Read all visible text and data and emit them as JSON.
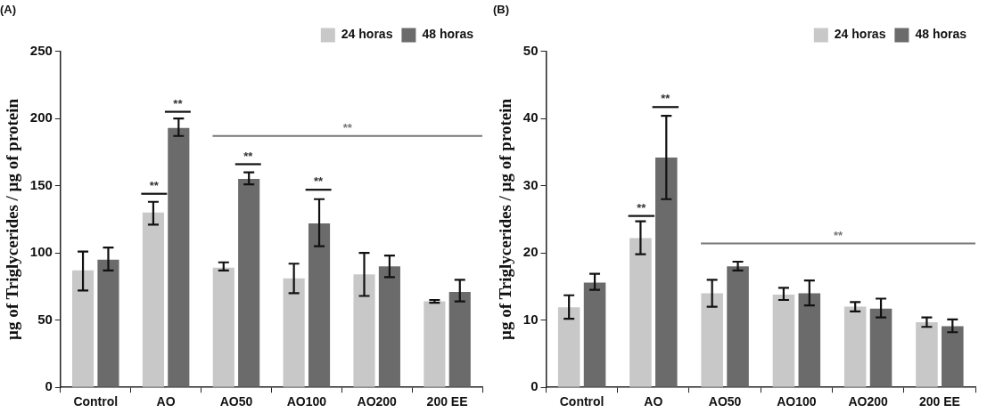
{
  "chart_data": [
    {
      "type": "bar",
      "title": "(A)",
      "ylabel": "µg of Triglycerides / µg of protein",
      "categories": [
        "Control",
        "AO",
        "AO50",
        "AO100",
        "AO200",
        "200 EE"
      ],
      "series": [
        {
          "name": "24 horas",
          "color": "#c8c8c8",
          "values": [
            87,
            130,
            89,
            81,
            84,
            64
          ],
          "errors": [
            [
              72,
              101
            ],
            [
              121,
              138
            ],
            [
              87,
              93
            ],
            [
              70,
              92
            ],
            [
              68,
              100
            ],
            [
              63,
              65
            ]
          ]
        },
        {
          "name": "48 horas",
          "color": "#6b6b6b",
          "values": [
            95,
            193,
            155,
            122,
            90,
            71
          ],
          "errors": [
            [
              87,
              104
            ],
            [
              187,
              200
            ],
            [
              151,
              160
            ],
            [
              105,
              140
            ],
            [
              82,
              98
            ],
            [
              64,
              80
            ]
          ]
        }
      ],
      "ylim": [
        0,
        250
      ],
      "yticks": [
        0,
        50,
        100,
        150,
        200,
        250
      ],
      "grid": false,
      "legend": "top right",
      "annotations": [
        "**",
        "**",
        "**",
        "**",
        "**"
      ]
    },
    {
      "type": "bar",
      "title": "(B)",
      "ylabel": "µg of Triglycerides / µg of protein",
      "categories": [
        "Control",
        "AO",
        "AO50",
        "AO100",
        "AO200",
        "200 EE"
      ],
      "series": [
        {
          "name": "24 horas",
          "color": "#c8c8c8",
          "values": [
            11.9,
            22.2,
            14,
            13.8,
            12,
            9.7
          ],
          "errors": [
            [
              10.2,
              13.7
            ],
            [
              19.8,
              24.7
            ],
            [
              12,
              16
            ],
            [
              13,
              14.8
            ],
            [
              11.3,
              12.7
            ],
            [
              9,
              10.4
            ]
          ]
        },
        {
          "name": "48 horas",
          "color": "#6b6b6b",
          "values": [
            15.6,
            34.2,
            18,
            14,
            11.7,
            9.1
          ],
          "errors": [
            [
              14.5,
              16.9
            ],
            [
              28,
              40.4
            ],
            [
              17.4,
              18.7
            ],
            [
              12.2,
              15.9
            ],
            [
              10.4,
              13.2
            ],
            [
              8.2,
              10.1
            ]
          ]
        }
      ],
      "ylim": [
        0,
        50
      ],
      "yticks": [
        0,
        10,
        20,
        30,
        40,
        50
      ],
      "grid": false,
      "legend": "top right",
      "annotations": [
        "**",
        "**",
        "**"
      ]
    }
  ]
}
